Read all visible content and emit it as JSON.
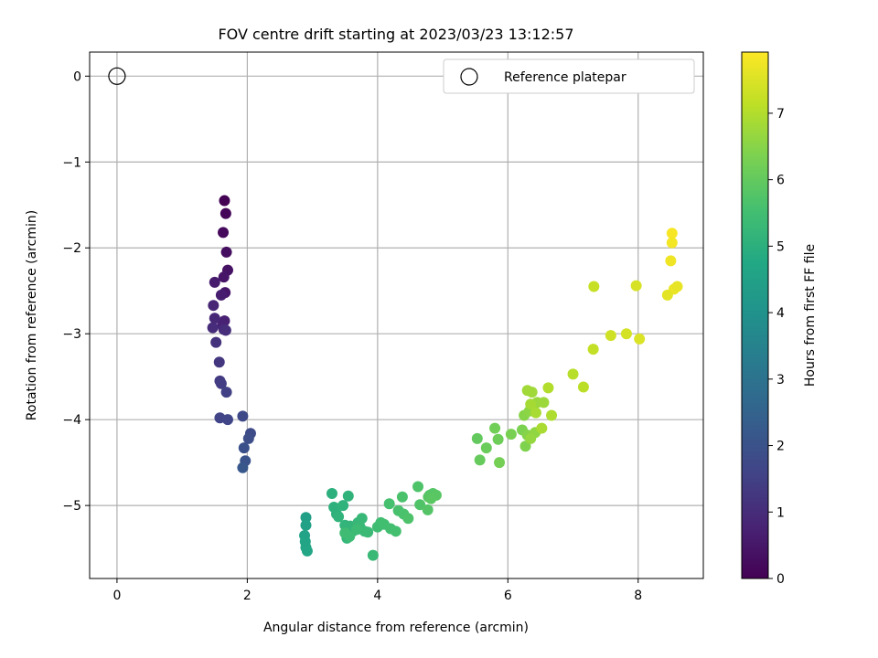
{
  "chart_data": {
    "type": "scatter",
    "title": "FOV centre drift starting at 2023/03/23 13:12:57",
    "xlabel": "Angular distance from reference (arcmin)",
    "ylabel": "Rotation from reference (arcmin)",
    "xlim": [
      -0.42,
      9.0
    ],
    "ylim": [
      -5.85,
      0.28
    ],
    "xticks": [
      0,
      2,
      4,
      6,
      8
    ],
    "xtick_labels": [
      "0",
      "2",
      "4",
      "6",
      "8"
    ],
    "yticks": [
      0,
      -1,
      -2,
      -3,
      -4,
      -5
    ],
    "ytick_labels": [
      "0",
      "−1",
      "−2",
      "−3",
      "−4",
      "−5"
    ],
    "grid": true,
    "legend": {
      "position": "top-right",
      "entries": [
        "Reference platepar"
      ]
    },
    "reference_point": {
      "label": "Reference platepar",
      "x": 0,
      "y": 0
    },
    "colorbar": {
      "label": "Hours from first FF file",
      "colormap": "viridis",
      "range": [
        0,
        7.92
      ],
      "ticks": [
        0,
        1,
        2,
        3,
        4,
        5,
        6,
        7
      ],
      "tick_labels": [
        "0",
        "1",
        "2",
        "3",
        "4",
        "5",
        "6",
        "7"
      ]
    },
    "series": [
      {
        "x": [
          1.65,
          1.67,
          1.63,
          1.68,
          1.7,
          1.64,
          1.66,
          1.5,
          1.6,
          1.65,
          1.62,
          1.48,
          1.5,
          1.64,
          1.47,
          1.67,
          1.52,
          1.57,
          1.58,
          1.6,
          1.68,
          1.58,
          1.7,
          1.93,
          2.05,
          2.02,
          1.95,
          1.97,
          1.93,
          2.9,
          2.9,
          2.88,
          2.89,
          2.9,
          2.92,
          3.3,
          3.33,
          3.37,
          3.47,
          3.55,
          3.4,
          3.5,
          3.58,
          3.62,
          3.53,
          3.7,
          3.76,
          3.8,
          3.73,
          3.85,
          3.68,
          3.57,
          3.5,
          4.0,
          4.05,
          4.1,
          4.2,
          4.28,
          4.18,
          4.32,
          4.4,
          4.38,
          4.47,
          4.62,
          4.65,
          4.8,
          4.77,
          4.85,
          4.78,
          4.9,
          4.82,
          3.93,
          5.53,
          5.57,
          5.67,
          5.85,
          5.8,
          5.87,
          6.05,
          6.22,
          6.27,
          6.3,
          6.25,
          6.33,
          6.42,
          6.35,
          6.45,
          6.55,
          6.37,
          6.3,
          6.35,
          6.43,
          6.52,
          6.67,
          6.62,
          7.0,
          7.16,
          7.31,
          7.32,
          7.58,
          7.82,
          7.97,
          8.02,
          8.52,
          8.52,
          8.5,
          8.55,
          8.6,
          8.45
        ],
        "y": [
          -1.45,
          -1.6,
          -1.82,
          -2.05,
          -2.26,
          -2.34,
          -2.52,
          -2.4,
          -2.55,
          -2.85,
          -2.9,
          -2.67,
          -2.82,
          -2.95,
          -2.93,
          -2.96,
          -3.1,
          -3.33,
          -3.55,
          -3.58,
          -3.68,
          -3.98,
          -4.0,
          -3.96,
          -4.16,
          -4.22,
          -4.33,
          -4.48,
          -4.56,
          -5.14,
          -5.23,
          -5.35,
          -5.42,
          -5.49,
          -5.53,
          -4.86,
          -5.02,
          -5.1,
          -5.0,
          -4.89,
          -5.13,
          -5.23,
          -5.24,
          -5.3,
          -5.38,
          -5.2,
          -5.15,
          -5.3,
          -5.25,
          -5.31,
          -5.28,
          -5.36,
          -5.32,
          -5.25,
          -5.2,
          -5.22,
          -5.27,
          -5.3,
          -4.98,
          -5.06,
          -5.1,
          -4.9,
          -5.15,
          -4.78,
          -4.99,
          -4.88,
          -5.05,
          -4.86,
          -4.9,
          -4.88,
          -4.92,
          -5.58,
          -4.22,
          -4.47,
          -4.33,
          -4.23,
          -4.1,
          -4.5,
          -4.17,
          -4.12,
          -4.31,
          -4.18,
          -3.95,
          -3.9,
          -4.15,
          -4.22,
          -3.8,
          -3.8,
          -3.68,
          -3.66,
          -3.82,
          -3.92,
          -4.1,
          -3.95,
          -3.63,
          -3.47,
          -3.62,
          -3.18,
          -2.45,
          -3.02,
          -3.0,
          -2.44,
          -3.06,
          -1.83,
          -1.94,
          -2.15,
          -2.48,
          -2.45,
          -2.55
        ],
        "c": [
          0.02,
          0.12,
          0.2,
          0.3,
          0.38,
          0.45,
          0.52,
          0.6,
          0.65,
          0.72,
          0.78,
          0.85,
          0.9,
          0.95,
          1.0,
          1.05,
          1.15,
          1.25,
          1.35,
          1.4,
          1.5,
          1.58,
          1.65,
          1.72,
          1.8,
          1.88,
          1.95,
          2.05,
          2.15,
          4.45,
          4.5,
          4.55,
          4.6,
          4.65,
          4.7,
          5.0,
          5.02,
          5.05,
          5.08,
          5.1,
          5.12,
          5.15,
          5.18,
          5.2,
          5.22,
          5.25,
          5.28,
          5.3,
          5.32,
          5.35,
          5.38,
          5.4,
          5.42,
          5.45,
          5.48,
          5.5,
          5.52,
          5.55,
          5.58,
          5.6,
          5.62,
          5.65,
          5.68,
          5.7,
          5.72,
          5.75,
          5.78,
          5.8,
          5.82,
          5.85,
          5.88,
          5.3,
          6.0,
          6.05,
          6.1,
          6.15,
          6.2,
          6.25,
          6.3,
          6.35,
          6.4,
          6.45,
          6.5,
          6.55,
          6.6,
          6.65,
          6.7,
          6.75,
          6.78,
          6.8,
          6.85,
          6.88,
          6.9,
          6.95,
          7.0,
          7.05,
          7.1,
          7.2,
          7.25,
          7.35,
          7.4,
          7.45,
          7.5,
          7.85,
          7.8,
          7.75,
          7.7,
          7.65,
          7.6
        ]
      }
    ]
  }
}
